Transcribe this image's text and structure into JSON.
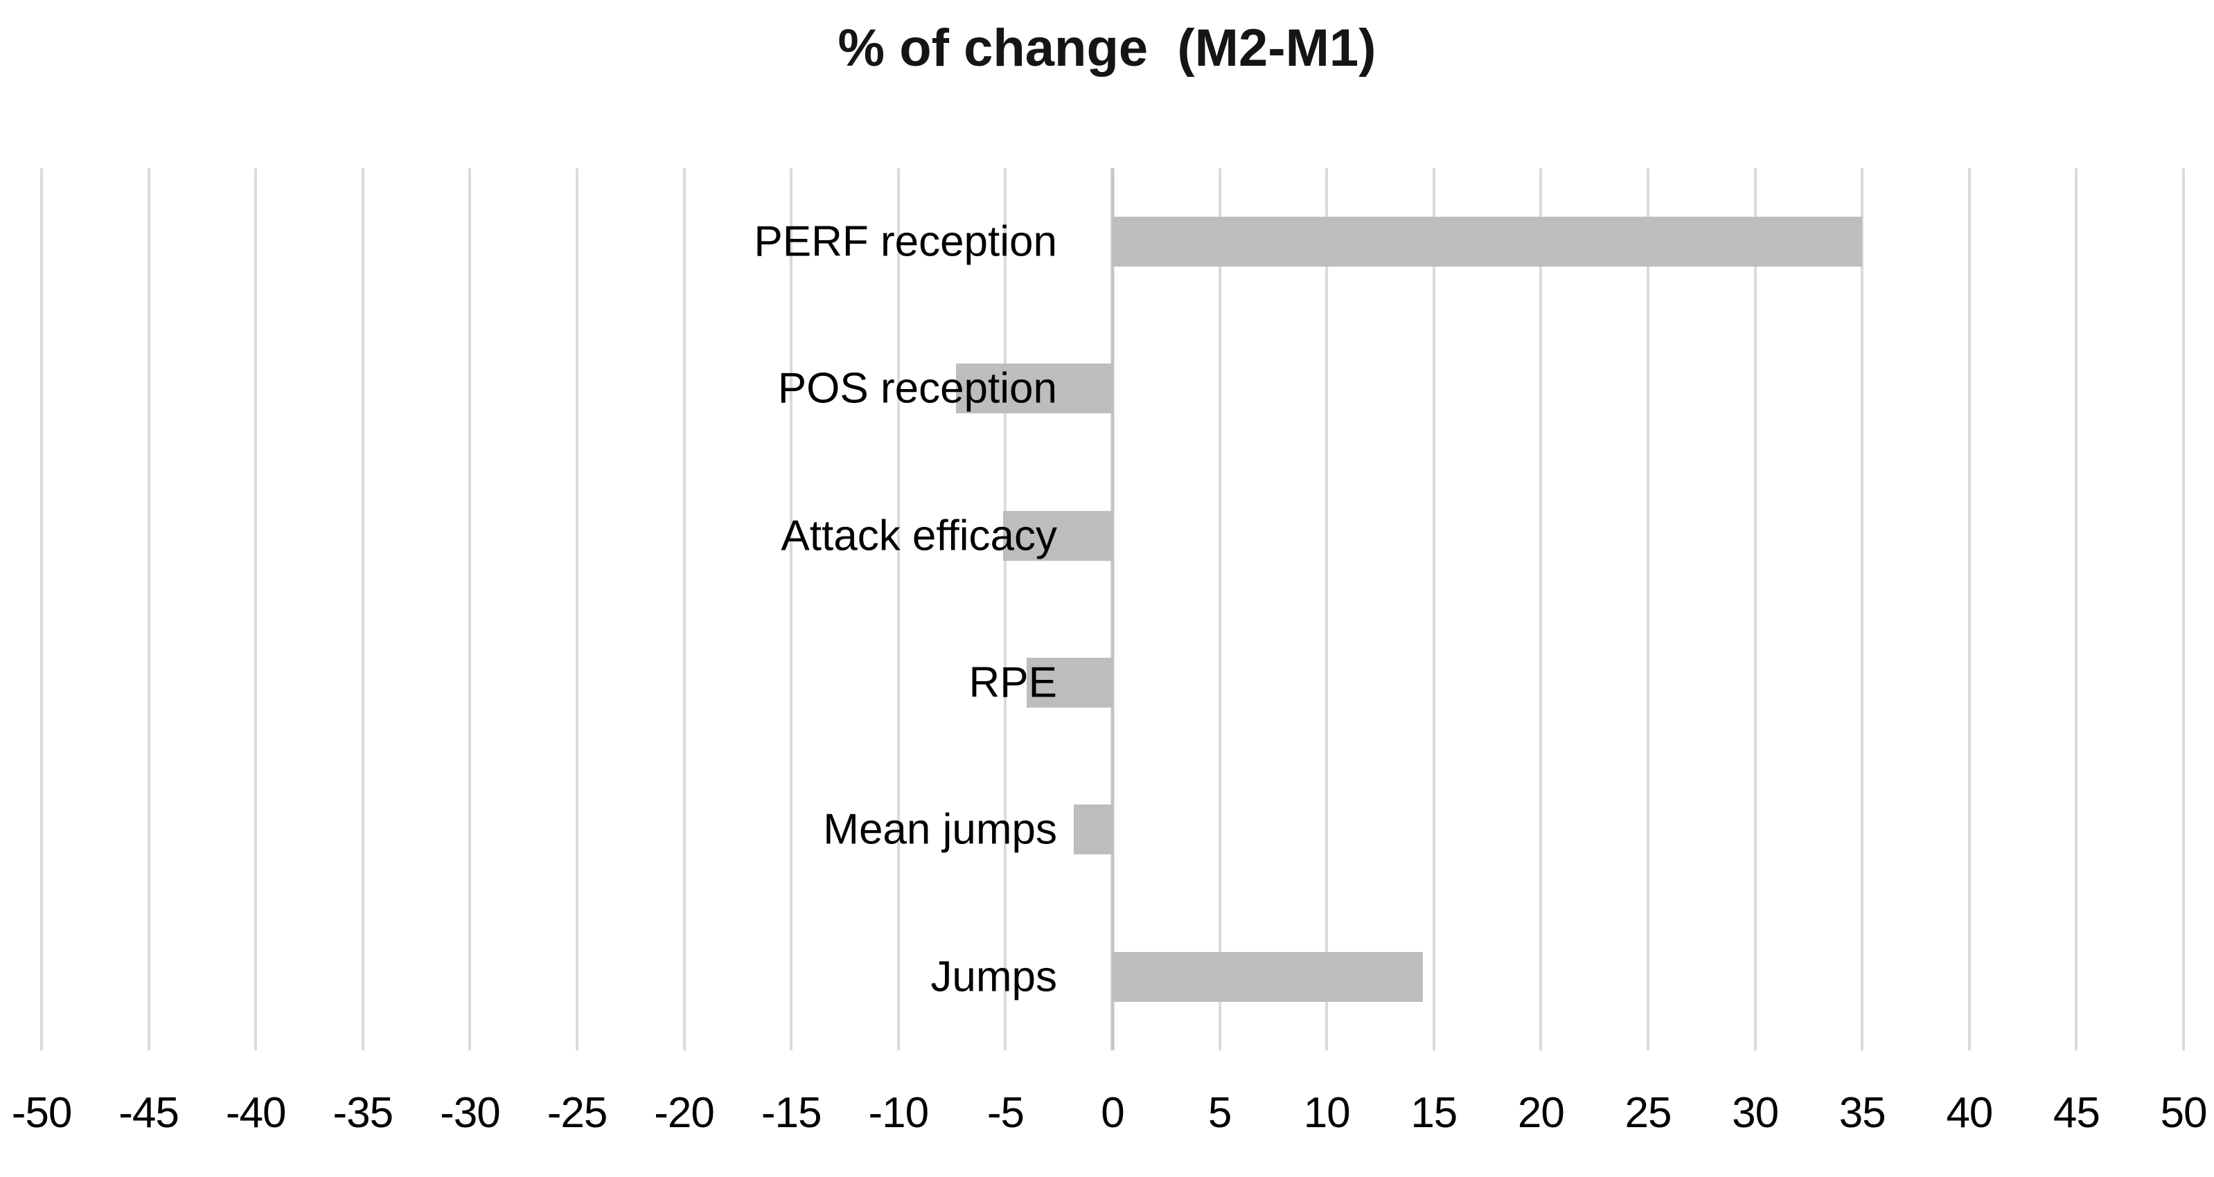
{
  "chart_data": {
    "type": "bar",
    "orientation": "horizontal",
    "title": "% of change  (M2-M1)",
    "categories": [
      "PERF reception",
      "POS reception",
      "Attack efficacy",
      "RPE",
      "Mean jumps",
      "Jumps"
    ],
    "values": [
      35,
      -7.3,
      -5.1,
      -4,
      -1.8,
      14.5
    ],
    "xlabel": "",
    "ylabel": "",
    "xlim": [
      -50,
      50
    ],
    "x_tick_step": 5,
    "x_ticks": [
      "-50",
      "-45",
      "-40",
      "-35",
      "-30",
      "-25",
      "-20",
      "-15",
      "-10",
      "-5",
      "0",
      "5",
      "10",
      "15",
      "20",
      "25",
      "30",
      "35",
      "40",
      "45",
      "50"
    ],
    "grid": true,
    "legend": false,
    "colors": {
      "bar_fill": "#bdbdbd",
      "gridline": "#dadada",
      "zero_line": "#c4c4c4",
      "title_text": "#151515",
      "label_text": "#000000",
      "background": "#ffffff"
    }
  }
}
